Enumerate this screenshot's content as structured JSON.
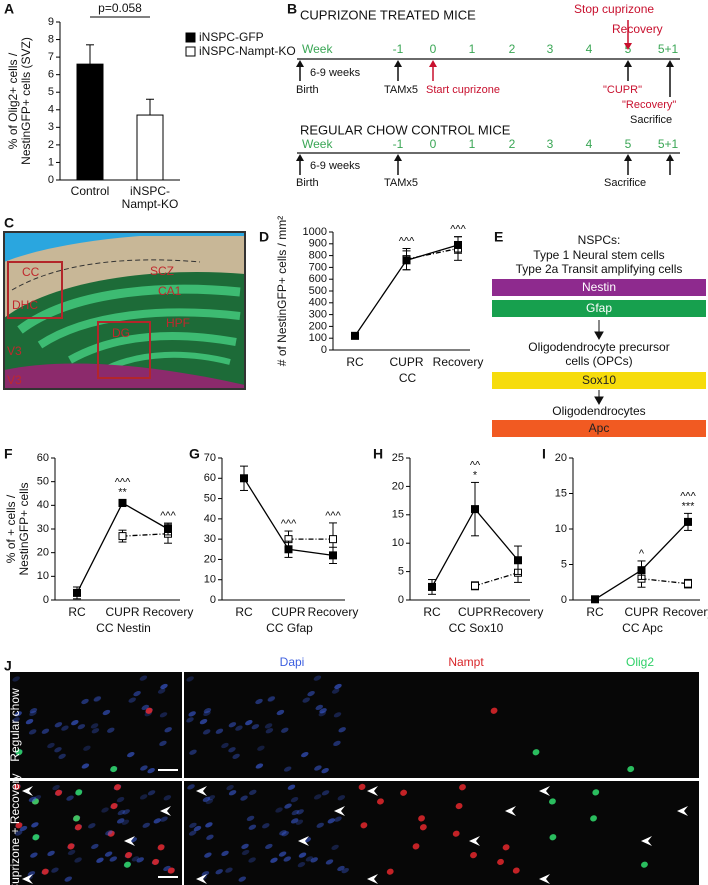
{
  "figure_panels": [
    "A",
    "B",
    "C",
    "D",
    "E",
    "F",
    "G",
    "H",
    "I",
    "J"
  ],
  "chart_data": [
    {
      "type": "bar",
      "annotation": "p=0.058",
      "ylabel": [
        "% of Olig2+ cells /",
        "NestinGFP+ cells (SVZ)"
      ],
      "categories": [
        "Control",
        "iNSPC-Nampt-KO"
      ],
      "series": [
        {
          "name": "iNSPC-GFP",
          "color": "#000000",
          "values": [
            6.6,
            null
          ],
          "errors": [
            1.1,
            null
          ]
        },
        {
          "name": "iNSPC-Nampt-KO",
          "color": "#ffffff",
          "values": [
            null,
            3.7
          ],
          "errors": [
            null,
            0.9
          ]
        }
      ],
      "ylim": [
        0,
        9
      ],
      "yticks": [
        0,
        1,
        2,
        3,
        4,
        5,
        6,
        7,
        8,
        9
      ],
      "legend": "upper right"
    },
    {
      "type": "line",
      "ylabel": [
        "# of NestinGFP+ cells / mm²"
      ],
      "xlabel": "CC",
      "categories": [
        "RC",
        "CUPR",
        "Recovery"
      ],
      "series": [
        {
          "color": "#000000",
          "fill": "#000000",
          "linestyle": "solid",
          "values": [
            120,
            760,
            890
          ],
          "errors": [
            10,
            80,
            70
          ]
        },
        {
          "color": "#000000",
          "fill": "#ffffff",
          "linestyle": "dashed",
          "values": [
            null,
            770,
            860
          ],
          "errors": [
            null,
            90,
            100
          ]
        }
      ],
      "annotations": [
        null,
        [
          "^^^"
        ],
        [
          "^^^"
        ]
      ],
      "ylim": [
        0,
        1000
      ],
      "yticks": [
        0,
        100,
        200,
        300,
        400,
        500,
        600,
        700,
        800,
        900,
        1000
      ]
    },
    {
      "type": "line",
      "ylabel": [
        "% of + cells /",
        "NestinGFP+ cells"
      ],
      "xlabel": "CC Nestin",
      "categories": [
        "RC",
        "CUPR",
        "Recovery"
      ],
      "series": [
        {
          "color": "#000000",
          "fill": "#000000",
          "linestyle": "solid",
          "values": [
            3,
            41,
            30
          ],
          "errors": [
            2.5,
            1.5,
            2.5
          ]
        },
        {
          "color": "#000000",
          "fill": "#ffffff",
          "linestyle": "dashed",
          "values": [
            null,
            27,
            28
          ],
          "errors": [
            null,
            2.5,
            4
          ]
        }
      ],
      "annotations": [
        null,
        [
          "^^^",
          "**"
        ],
        [
          "^^^"
        ]
      ],
      "ylim": [
        0,
        60
      ],
      "yticks": [
        0,
        10,
        20,
        30,
        40,
        50,
        60
      ]
    },
    {
      "type": "line",
      "xlabel": "CC Gfap",
      "categories": [
        "RC",
        "CUPR",
        "Recovery"
      ],
      "series": [
        {
          "color": "#000000",
          "fill": "#000000",
          "linestyle": "solid",
          "values": [
            60,
            25,
            22
          ],
          "errors": [
            6,
            4,
            4
          ]
        },
        {
          "color": "#000000",
          "fill": "#ffffff",
          "linestyle": "dashed",
          "values": [
            null,
            30,
            30
          ],
          "errors": [
            null,
            4,
            8
          ]
        }
      ],
      "annotations": [
        null,
        [
          "^^^"
        ],
        [
          "^^^"
        ]
      ],
      "ylim": [
        0,
        70
      ],
      "yticks": [
        0,
        10,
        20,
        30,
        40,
        50,
        60,
        70
      ]
    },
    {
      "type": "line",
      "xlabel": "CC Sox10",
      "categories": [
        "RC",
        "CUPR",
        "Recovery"
      ],
      "series": [
        {
          "color": "#000000",
          "fill": "#000000",
          "linestyle": "solid",
          "values": [
            2.3,
            16,
            7
          ],
          "errors": [
            1.3,
            4.7,
            2.5
          ]
        },
        {
          "color": "#000000",
          "fill": "#ffffff",
          "linestyle": "dashed",
          "values": [
            null,
            2.5,
            4.8
          ],
          "errors": [
            null,
            0.7,
            1.7
          ]
        }
      ],
      "annotations": [
        null,
        [
          "^^",
          "*"
        ],
        null
      ],
      "ylim": [
        0,
        25
      ],
      "yticks": [
        0,
        5,
        10,
        15,
        20,
        25
      ]
    },
    {
      "type": "line",
      "xlabel": "CC Apc",
      "categories": [
        "RC",
        "CUPR",
        "Recovery"
      ],
      "series": [
        {
          "color": "#000000",
          "fill": "#000000",
          "linestyle": "solid",
          "values": [
            0.1,
            4.2,
            11
          ],
          "errors": [
            0.2,
            1.3,
            1.2
          ]
        },
        {
          "color": "#000000",
          "fill": "#ffffff",
          "linestyle": "dashed",
          "values": [
            null,
            3,
            2.3
          ],
          "errors": [
            null,
            1.2,
            0.6
          ]
        }
      ],
      "annotations": [
        null,
        [
          "^"
        ],
        [
          "^^^",
          "***"
        ]
      ],
      "ylim": [
        0,
        20
      ],
      "yticks": [
        0,
        5,
        10,
        15,
        20
      ]
    }
  ],
  "timeline": {
    "treated": {
      "title": "CUPRIZONE TREATED MICE",
      "week_label": "Week",
      "weeks": [
        "-1",
        "0",
        "1",
        "2",
        "3",
        "4",
        "5",
        "5+1"
      ],
      "interval": "6-9 weeks",
      "birth": "Birth",
      "tam": "TAMx5",
      "start": "Start cuprizone",
      "stop": "Stop cuprizone",
      "recovery": "Recovery",
      "cupr_quote": "\"CUPR\"",
      "recovery_quote": "\"Recovery\"",
      "sacrifice": "Sacrifice"
    },
    "control": {
      "title": "REGULAR CHOW CONTROL MICE",
      "week_label": "Week",
      "weeks": [
        "-1",
        "0",
        "1",
        "2",
        "3",
        "4",
        "5",
        "5+1"
      ],
      "interval": "6-9 weeks",
      "birth": "Birth",
      "tam": "TAMx5",
      "sacrifice": "Sacrifice"
    }
  },
  "illustration": {
    "labels": [
      "SCZ",
      "CA1",
      "HPF",
      "CC",
      "DHC",
      "DG",
      "V3",
      "V3"
    ]
  },
  "lineage": {
    "title": "NSPCs:",
    "types": [
      "Type 1 Neural stem cells",
      "Type 2a Transit amplifying cells"
    ],
    "markers": [
      {
        "label": "Nestin",
        "color": "#8e2a8e"
      },
      {
        "label": "Gfap",
        "color": "#17a04e"
      },
      {
        "label": "Sox10",
        "color": "#f6dc0c"
      },
      {
        "label": "Apc",
        "color": "#f15a22"
      }
    ],
    "opc": [
      "Oligodendrocyte precursor",
      "cells (OPCs)"
    ],
    "oligo": "Oligodendrocytes"
  },
  "micrographs": {
    "channels": [
      {
        "name": "Dapi",
        "color": "#3d5fe0"
      },
      {
        "name": "Nampt",
        "color": "#d8262a"
      },
      {
        "name": "Olig2",
        "color": "#2fd168"
      }
    ],
    "conditions": [
      "Regular chow",
      "Cuprizone + Recovery"
    ]
  }
}
